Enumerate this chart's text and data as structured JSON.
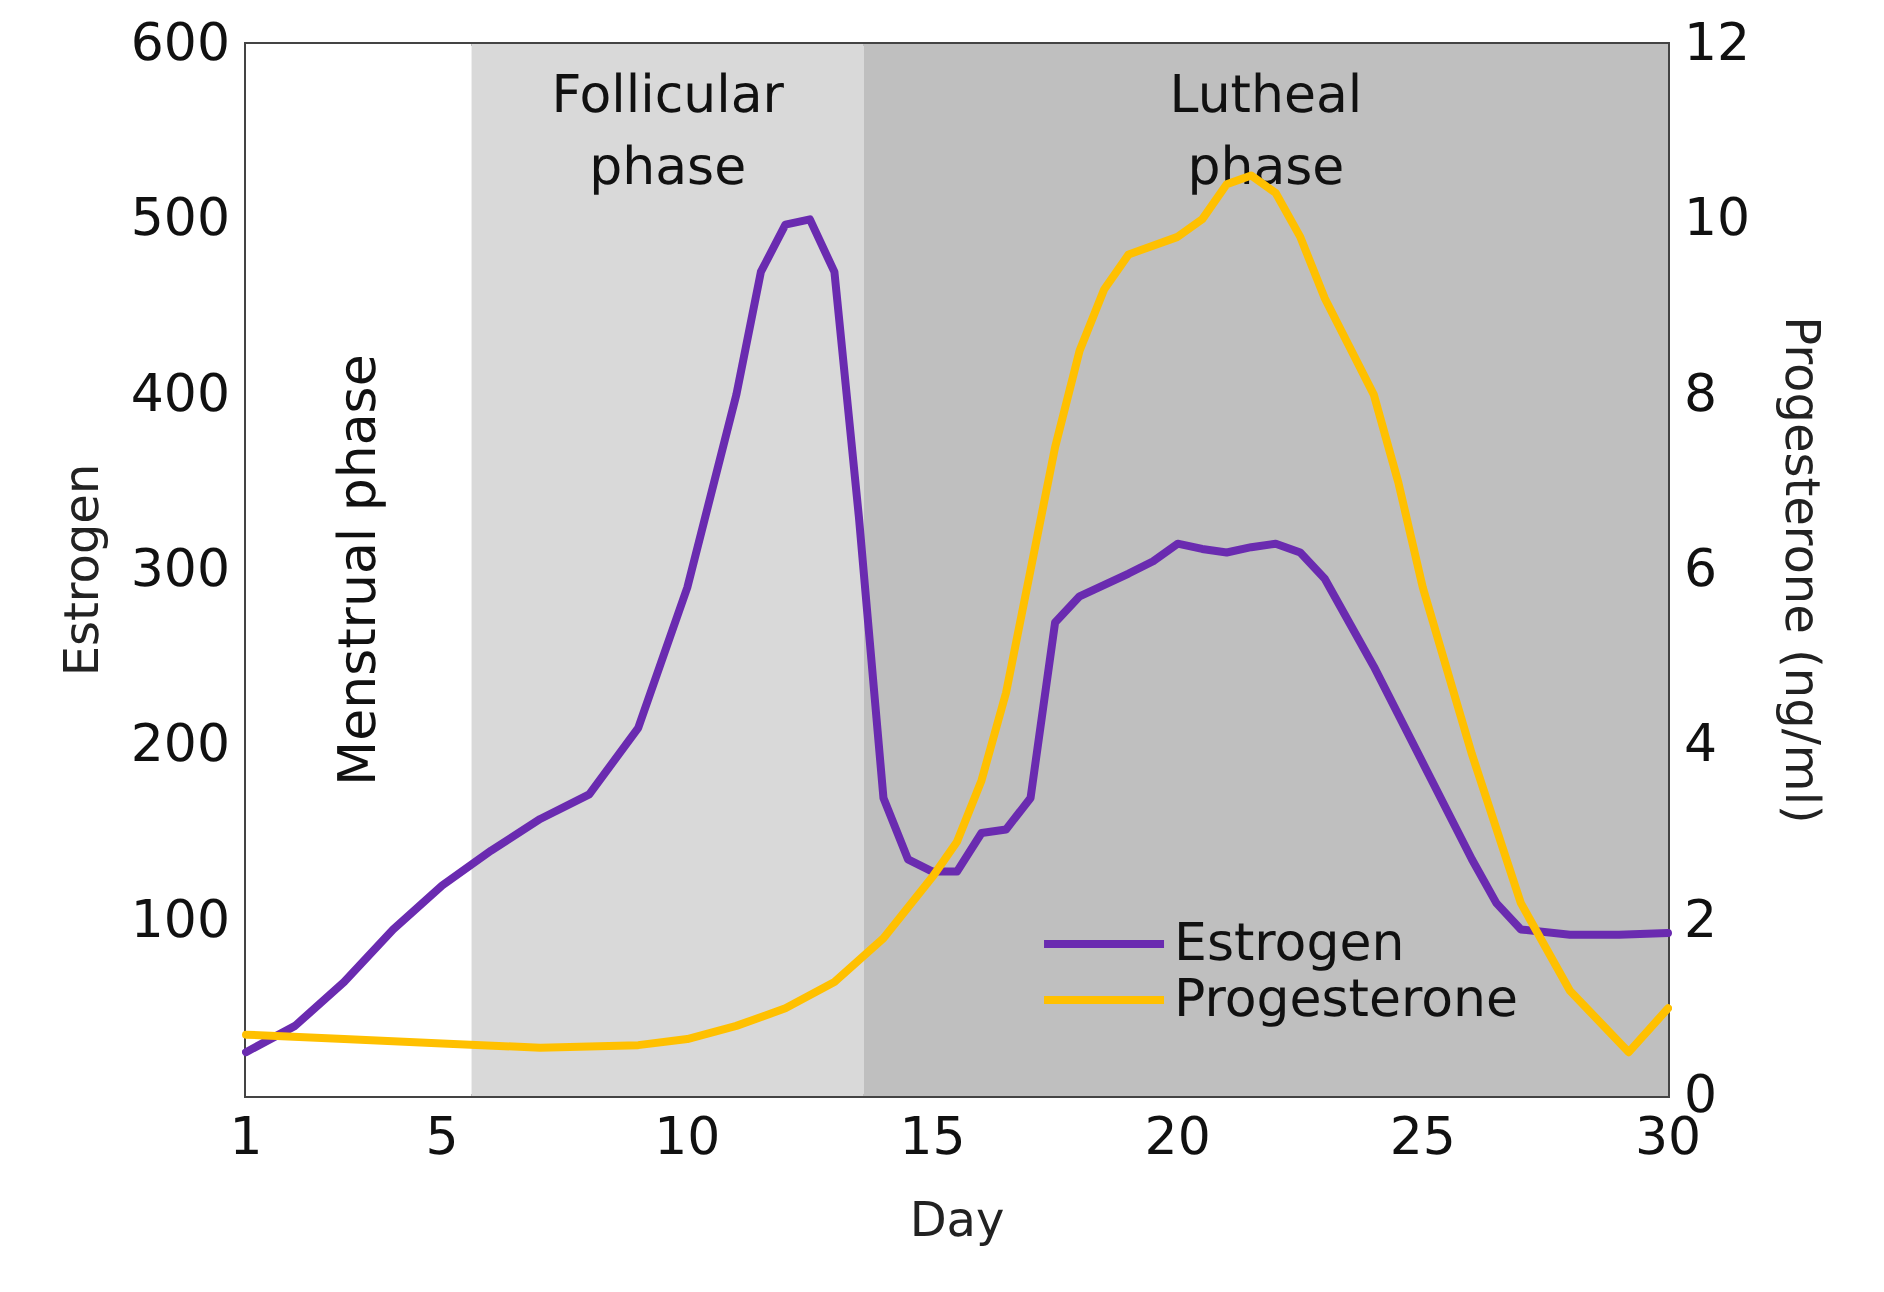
{
  "chart_data": {
    "type": "line",
    "xlabel": "Day",
    "ylabel": "Estrogen",
    "y2label": "Progesterone (ng/ml)",
    "xlim": [
      1,
      30
    ],
    "xticks": [
      1,
      {
        "value": 2,
        "label": null
      },
      {
        "value": 3,
        "label": null
      },
      {
        "value": 4,
        "label": null
      },
      5,
      {
        "value": 6,
        "label": null
      },
      {
        "value": 7,
        "label": null
      },
      {
        "value": 8,
        "label": null
      },
      {
        "value": 9,
        "label": null
      },
      10,
      {
        "value": 11,
        "label": null
      },
      {
        "value": 12,
        "label": null
      },
      {
        "value": 13,
        "label": null
      },
      {
        "value": 14,
        "label": null
      },
      15,
      {
        "value": 16,
        "label": null
      },
      {
        "value": 17,
        "label": null
      },
      {
        "value": 18,
        "label": null
      },
      {
        "value": 19,
        "label": null
      },
      20,
      {
        "value": 21,
        "label": null
      },
      {
        "value": 22,
        "label": null
      },
      {
        "value": 23,
        "label": null
      },
      {
        "value": 24,
        "label": null
      },
      25,
      {
        "value": 26,
        "label": null
      },
      {
        "value": 27,
        "label": null
      },
      {
        "value": 28,
        "label": null
      },
      {
        "value": 29,
        "label": null
      },
      30
    ],
    "ylim": [
      0,
      600
    ],
    "yticks": [
      100,
      200,
      300,
      400,
      500,
      600
    ],
    "y2lim": [
      0,
      12
    ],
    "y2ticks": [
      0,
      2,
      4,
      6,
      8,
      10,
      12
    ],
    "grid": false,
    "legend": "bottom right",
    "marker": "none",
    "line_style": "solid",
    "bands": [
      {
        "axis": "x",
        "from": 1,
        "to": 5.6,
        "label": "Menstrual phase",
        "color": "#ffffff"
      },
      {
        "axis": "x",
        "from": 5.6,
        "to": 13.6,
        "label": "Follicular\nphase",
        "color": "#d9d9d9"
      },
      {
        "axis": "x",
        "from": 13.6,
        "to": 30,
        "label": "Lutheal\nphase",
        "color": "#bfbfbf"
      }
    ],
    "series": [
      {
        "name": "Estrogen",
        "color": "#6a2bb0",
        "x": [
          1,
          2,
          3,
          4,
          5,
          6,
          7,
          8,
          9,
          10,
          11,
          11.5,
          12,
          12.5,
          13,
          13.5,
          14,
          14.5,
          15,
          15.5,
          16,
          16.5,
          17,
          17.5,
          18,
          19,
          19.5,
          20,
          20.5,
          21,
          21.5,
          22,
          22.5,
          23,
          24,
          25,
          26,
          26.5,
          27,
          28,
          29,
          30
        ],
        "values": [
          25,
          40,
          65,
          95,
          120,
          140,
          158,
          172,
          210,
          290,
          400,
          470,
          497,
          500,
          470,
          330,
          170,
          135,
          128,
          128,
          150,
          152,
          170,
          270,
          285,
          298,
          305,
          315,
          312,
          310,
          313,
          315,
          310,
          295,
          245,
          190,
          135,
          110,
          95,
          92,
          92,
          93
        ]
      },
      {
        "name": "Progesterone",
        "color": "#ffc000",
        "axis": "y2",
        "x": [
          1,
          3,
          5,
          7,
          9,
          10,
          11,
          12,
          13,
          14,
          15,
          15.5,
          16,
          16.5,
          17,
          17.5,
          18,
          18.5,
          19,
          20,
          20.5,
          21,
          21.5,
          22,
          22.5,
          23,
          24,
          24.5,
          25,
          26,
          27,
          28,
          29.2,
          30
        ],
        "values": [
          0.7,
          0.65,
          0.6,
          0.55,
          0.58,
          0.65,
          0.8,
          1.0,
          1.3,
          1.8,
          2.5,
          2.9,
          3.6,
          4.6,
          6.0,
          7.4,
          8.5,
          9.2,
          9.6,
          9.8,
          10.0,
          10.4,
          10.5,
          10.3,
          9.8,
          9.1,
          8.0,
          7.0,
          5.8,
          3.9,
          2.2,
          1.2,
          0.5,
          1.0
        ]
      }
    ]
  }
}
